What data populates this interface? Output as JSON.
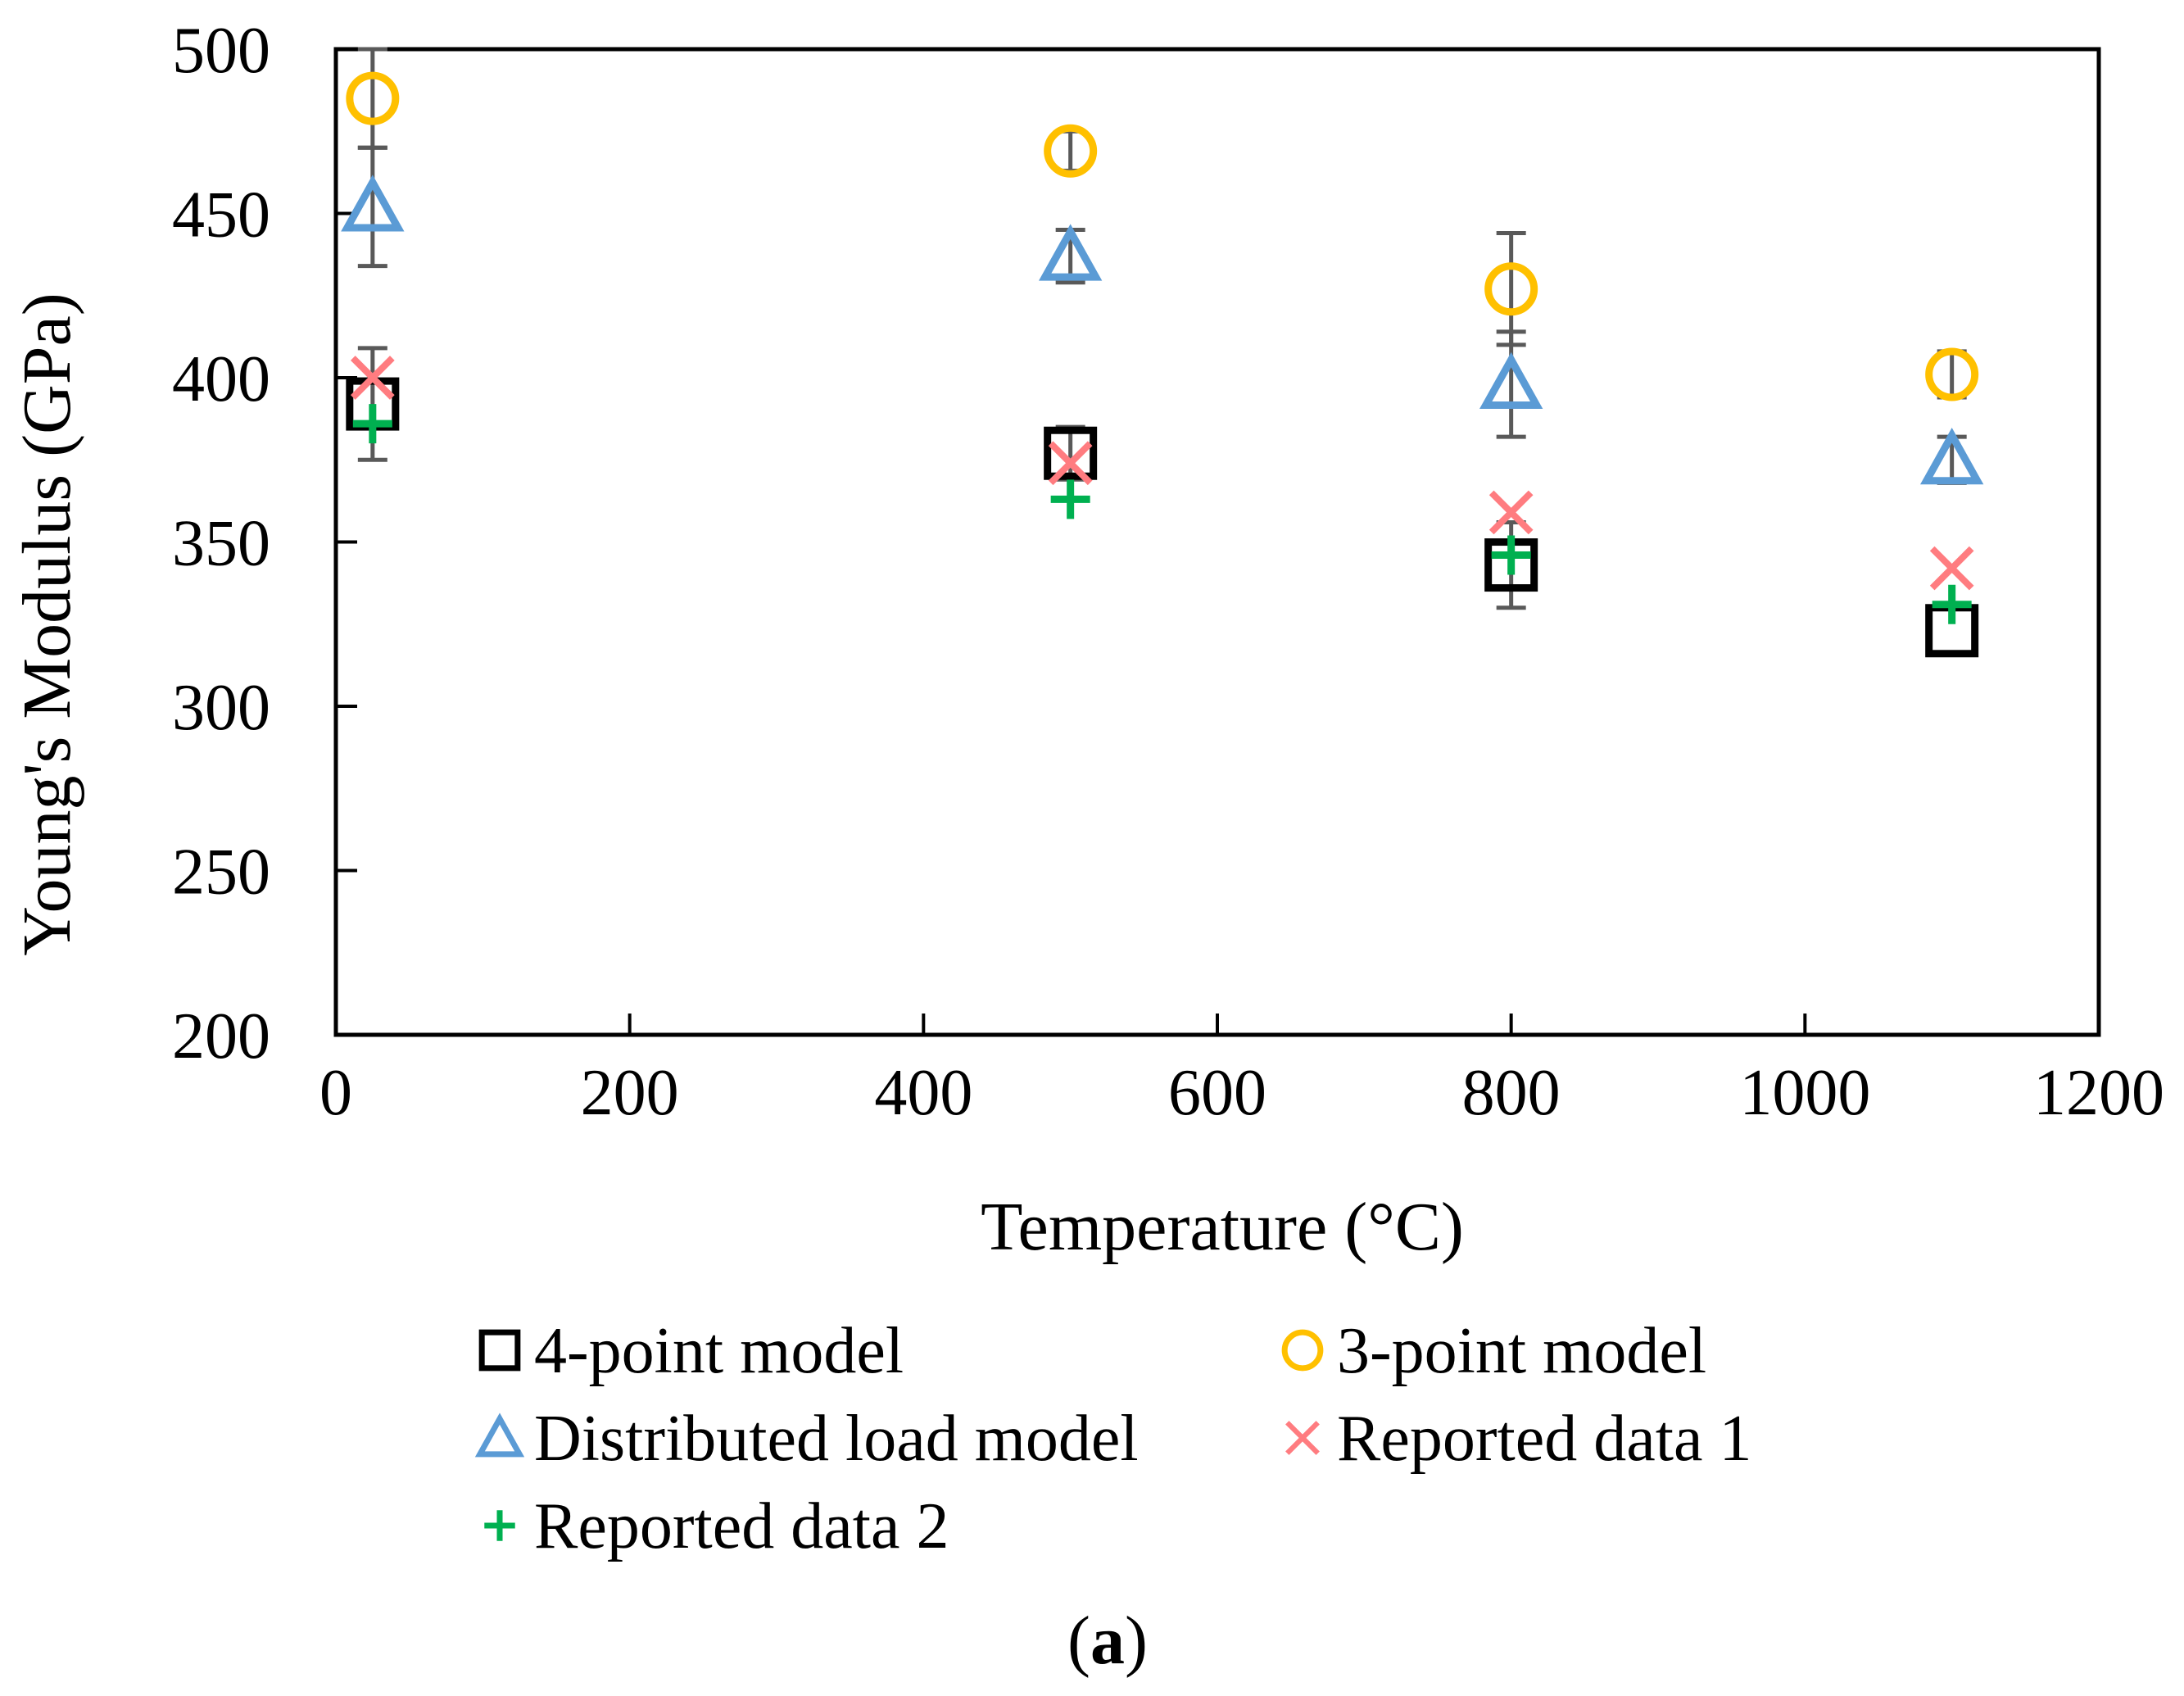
{
  "chart_data": {
    "type": "scatter",
    "title": "",
    "xlabel": "Temperature (°C)",
    "ylabel": "Young's Modulus (GPa)",
    "xlim": [
      0,
      1200
    ],
    "ylim": [
      200,
      500
    ],
    "xticks": [
      0,
      200,
      400,
      600,
      800,
      1000,
      1200
    ],
    "yticks": [
      200,
      250,
      300,
      350,
      400,
      450,
      500
    ],
    "grid": false,
    "legend_position": "bottom",
    "series": [
      {
        "name": "4-point model",
        "marker": "square",
        "color": "#000000",
        "x": [
          25,
          500,
          800,
          1100
        ],
        "y": [
          392,
          377,
          343,
          323
        ],
        "err": [
          17,
          8,
          13,
          0
        ]
      },
      {
        "name": "3-point model",
        "marker": "circle",
        "color": "#FFC000",
        "x": [
          25,
          500,
          800,
          1100
        ],
        "y": [
          485,
          469,
          427,
          401
        ],
        "err": [
          15,
          6,
          17,
          7
        ]
      },
      {
        "name": "Distributed load model",
        "marker": "triangle",
        "color": "#5B9BD5",
        "x": [
          25,
          500,
          800,
          1100
        ],
        "y": [
          452,
          437,
          398,
          375
        ],
        "err": [
          18,
          8,
          16,
          7
        ]
      },
      {
        "name": "Reported data 1",
        "marker": "x",
        "color": "#FF7C80",
        "x": [
          25,
          500,
          800,
          1100
        ],
        "y": [
          400,
          374,
          359,
          342
        ],
        "err": [
          0,
          0,
          0,
          0
        ]
      },
      {
        "name": "Reported data 2",
        "marker": "plus",
        "color": "#00B050",
        "x": [
          25,
          500,
          800,
          1100
        ],
        "y": [
          386,
          363,
          346,
          331
        ],
        "err": [
          0,
          0,
          0,
          0
        ]
      }
    ]
  },
  "caption": {
    "open": "(",
    "letter": "a",
    "close": ")"
  }
}
